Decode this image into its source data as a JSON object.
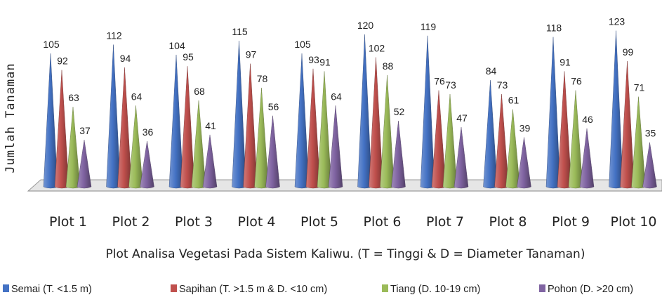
{
  "chart_data": {
    "type": "bar",
    "style": "3d-cone",
    "categories": [
      "Plot 1",
      "Plot 2",
      "Plot 3",
      "Plot 4",
      "Plot 5",
      "Plot 6",
      "Plot 7",
      "Plot 8",
      "Plot 9",
      "Plot 10"
    ],
    "series": [
      {
        "name": "Semai (T. <1.5 m)",
        "color": "#4472c4",
        "values": [
          105,
          112,
          104,
          115,
          105,
          120,
          119,
          84,
          118,
          123
        ]
      },
      {
        "name": "Sapihan (T. >1.5 m & D. <10 cm)",
        "color": "#c0504d",
        "values": [
          92,
          94,
          95,
          97,
          93,
          102,
          76,
          73,
          91,
          99
        ]
      },
      {
        "name": "Tiang (D. 10-19 cm)",
        "color": "#9bbb59",
        "values": [
          63,
          64,
          68,
          78,
          91,
          88,
          73,
          61,
          76,
          71
        ]
      },
      {
        "name": "Pohon (D. >20 cm)",
        "color": "#8064a2",
        "values": [
          37,
          36,
          41,
          56,
          64,
          52,
          47,
          39,
          46,
          35
        ]
      }
    ],
    "xlabel": "Plot  Analisa Vegetasi Pada Sistem Kaliwu. (T = Tinggi & D = Diameter Tanaman)",
    "ylabel": "Jumlah Tanaman",
    "ylim": [
      0,
      130
    ],
    "grid": false,
    "legend": "bottom"
  }
}
